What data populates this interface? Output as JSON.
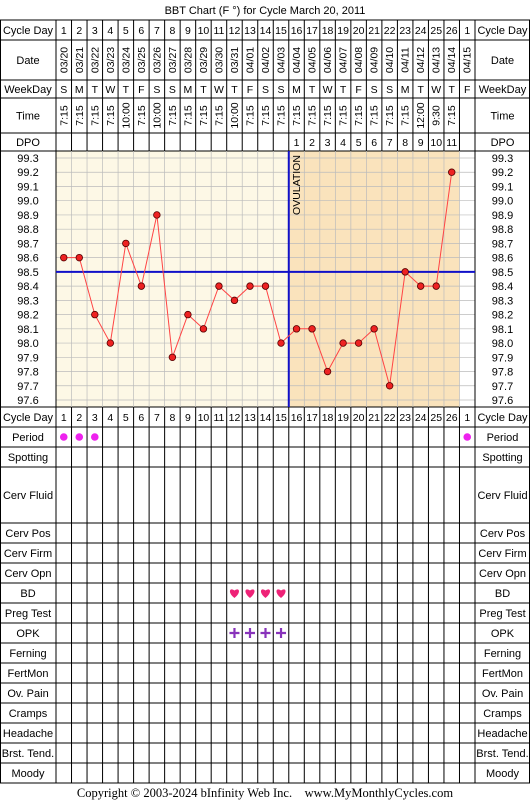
{
  "title": "BBT Chart (F °) for Cycle March 20, 2011",
  "copyright": "Copyright © 2003-2024 bInfinity Web Inc.    www.MyMonthlyCycles.com",
  "row_labels": {
    "cycle_day": "Cycle Day",
    "date": "Date",
    "weekday": "WeekDay",
    "time": "Time",
    "dpo": "DPO"
  },
  "ovulation_label": "OVULATION",
  "colors": {
    "pre_ovulation_bg": "#fdf8e6",
    "post_ovulation_bg": "#fae3bc",
    "grid": "#bbbbbb",
    "line": "#ff4444",
    "point": "#ee2222",
    "coverline": "#1010c8",
    "period_dot": "#ee22ee",
    "heart": "#ee2277",
    "plus": "#8833bb"
  },
  "chart_data": {
    "type": "line",
    "cycle_days": [
      "1",
      "2",
      "3",
      "4",
      "5",
      "6",
      "7",
      "8",
      "9",
      "10",
      "11",
      "12",
      "13",
      "14",
      "15",
      "16",
      "17",
      "18",
      "19",
      "20",
      "21",
      "22",
      "23",
      "24",
      "25",
      "26",
      "1"
    ],
    "dates": [
      "03/20",
      "03/21",
      "03/22",
      "03/23",
      "03/24",
      "03/25",
      "03/26",
      "03/27",
      "03/28",
      "03/29",
      "03/30",
      "03/31",
      "04/01",
      "04/02",
      "04/03",
      "04/04",
      "04/05",
      "04/06",
      "04/07",
      "04/08",
      "04/09",
      "04/10",
      "04/11",
      "04/12",
      "04/13",
      "04/14",
      "04/15"
    ],
    "weekdays": [
      "S",
      "M",
      "T",
      "W",
      "T",
      "F",
      "S",
      "S",
      "M",
      "T",
      "W",
      "T",
      "F",
      "S",
      "S",
      "M",
      "T",
      "W",
      "T",
      "F",
      "S",
      "S",
      "M",
      "T",
      "W",
      "T",
      "F"
    ],
    "times": [
      "7:15",
      "7:15",
      "7:15",
      "7:15",
      "10:00",
      "7:15",
      "10:00",
      "7:15",
      "7:15",
      "7:15",
      "7:15",
      "10:00",
      "7:15",
      "7:15",
      "7:15",
      "7:15",
      "7:15",
      "7:15",
      "7:15",
      "7:15",
      "7:15",
      "7:15",
      "7:15",
      "12:00",
      "9:30",
      "7:15",
      ""
    ],
    "dpo": [
      "",
      "",
      "",
      "",
      "",
      "",
      "",
      "",
      "",
      "",
      "",
      "",
      "",
      "",
      "",
      "1",
      "2",
      "3",
      "4",
      "5",
      "6",
      "7",
      "8",
      "9",
      "10",
      "11",
      ""
    ],
    "temperatures": [
      98.6,
      98.6,
      98.2,
      98.0,
      98.7,
      98.4,
      98.9,
      97.9,
      98.2,
      98.1,
      98.4,
      98.3,
      98.4,
      98.4,
      98.0,
      98.1,
      98.1,
      97.8,
      98.0,
      98.0,
      98.1,
      97.7,
      98.5,
      98.4,
      98.4,
      99.2,
      null
    ],
    "y_ticks": [
      "99.3",
      "99.2",
      "99.1",
      "99.0",
      "98.9",
      "98.8",
      "98.7",
      "98.6",
      "98.5",
      "98.4",
      "98.3",
      "98.2",
      "98.1",
      "98.0",
      "97.9",
      "97.8",
      "97.7",
      "97.6"
    ],
    "ylim": [
      97.6,
      99.3
    ],
    "coverline": 98.5,
    "ovulation_day_index": 14,
    "grid": true,
    "legend": "none"
  },
  "tracking": {
    "rows": [
      {
        "label": "Cycle Day",
        "marks": "daynums"
      },
      {
        "label": "Period",
        "marks": {
          "0": "dot",
          "1": "dot",
          "2": "dot",
          "26": "dot"
        }
      },
      {
        "label": "Spotting",
        "marks": {}
      },
      {
        "label": "Cerv Fluid",
        "marks": {}
      },
      {
        "label": "Cerv Pos",
        "marks": {}
      },
      {
        "label": "Cerv Firm",
        "marks": {}
      },
      {
        "label": "Cerv Opn",
        "marks": {}
      },
      {
        "label": "BD",
        "marks": {
          "11": "heart",
          "12": "heart",
          "13": "heart",
          "14": "heart"
        }
      },
      {
        "label": "Preg Test",
        "marks": {}
      },
      {
        "label": "OPK",
        "marks": {
          "11": "plus",
          "12": "plus",
          "13": "plus",
          "14": "plus"
        }
      },
      {
        "label": "Ferning",
        "marks": {}
      },
      {
        "label": "FertMon",
        "marks": {}
      },
      {
        "label": "Ov. Pain",
        "marks": {}
      },
      {
        "label": "Cramps",
        "marks": {}
      },
      {
        "label": "Headache",
        "marks": {}
      },
      {
        "label": "Brst. Tend.",
        "marks": {}
      },
      {
        "label": "Moody",
        "marks": {}
      }
    ]
  }
}
